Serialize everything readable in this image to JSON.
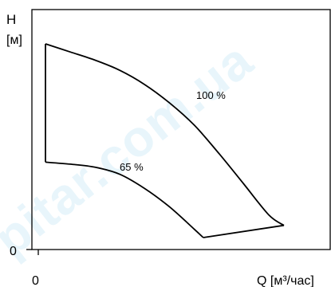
{
  "watermark": "pitar.com.ua",
  "chart_data": {
    "type": "area",
    "title": "",
    "ylabel_line1": "H",
    "ylabel_line2": "[м]",
    "xlabel": "Q [м³/час]",
    "y_zero_label": "0",
    "x_zero_label": "0",
    "grid": false,
    "xlim": [
      0,
      100
    ],
    "ylim": [
      0,
      100
    ],
    "series": [
      {
        "name": "100 %",
        "x": [
          0,
          10,
          20,
          30,
          40,
          50,
          60,
          70,
          80,
          90,
          96
        ],
        "y": [
          100,
          96,
          92,
          87,
          80,
          71,
          60,
          46,
          31,
          16,
          11
        ]
      },
      {
        "name": "65 %",
        "x": [
          0,
          10,
          20,
          30,
          40,
          50,
          60,
          63.5
        ],
        "y": [
          42,
          41,
          39.5,
          36,
          29,
          20,
          9,
          5
        ]
      }
    ],
    "closing_line": {
      "x": [
        63.5,
        96
      ],
      "y": [
        5,
        11
      ]
    },
    "left_edge": {
      "x": [
        0,
        0
      ],
      "y": [
        42,
        100
      ]
    }
  }
}
